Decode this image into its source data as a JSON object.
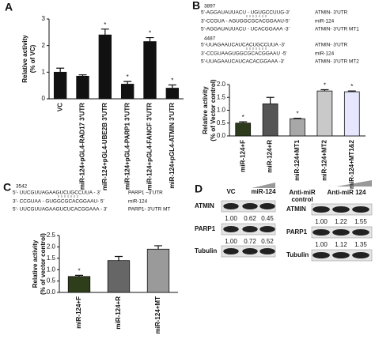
{
  "chart_data": [
    {
      "type": "bar",
      "panel_label": "A",
      "ylabel": [
        "Relative activity",
        "(% of VC)"
      ],
      "categories": [
        "VC",
        "miR-124+pGL4-RAD17 3'UTR",
        "miR-124+pGL4-UBE2B 3'UTR",
        "miR-124+pGL4-PARP1 3'UTR",
        "miR-124+pGL4-FANCF 3'UTR",
        "miR-124+pGL4-ATMIN 3'UTR"
      ],
      "values": [
        1.0,
        0.85,
        2.4,
        0.55,
        2.15,
        0.4
      ],
      "errors": [
        0.15,
        0.05,
        0.22,
        0.1,
        0.15,
        0.12
      ],
      "significance": [
        null,
        null,
        "*",
        "*",
        "*",
        "*"
      ],
      "color": "#111111",
      "ylim": [
        0,
        3
      ],
      "yticks": [
        0,
        1,
        2,
        3
      ]
    },
    {
      "type": "bar",
      "panel_label": "B",
      "sequences": [
        {
          "site": "3897",
          "lines": [
            [
              "5'-AGGAUAUUACU - UGUGCCUUG-3'",
              "ATMIN- 3'UTR"
            ],
            [
              "3'-CCGUA - AGUGGCGCACGGAAU-5'",
              "miR-124"
            ],
            [
              "5'-AGGAUAUUACU - UCACGGAAA -3'",
              "ATMIN- 3'UTR MT1"
            ]
          ]
        },
        {
          "site": "4487",
          "lines": [
            [
              "5'-UUAGAAUCAUCACUGCCUUA -3'",
              "ATMIN- 3'UTR"
            ],
            [
              "3'-CCGUAAGUGGCGCACGGAAU -5'",
              "miR-124"
            ],
            [
              "5'-UUAGAAUCAUCACACGGAAA -3'",
              "ATMIN- 3'UTR MT2"
            ]
          ]
        }
      ],
      "ylabel": [
        "Relative activity",
        "(% of Vector control)"
      ],
      "categories": [
        "miR-124+F",
        "miR-124+R",
        "miR-124+MT1",
        "miR-124+MT2",
        "miR-124+MT1&2"
      ],
      "values": [
        0.5,
        1.25,
        0.67,
        1.75,
        1.72
      ],
      "errors": [
        0.05,
        0.25,
        0.02,
        0.05,
        0.03
      ],
      "significance": [
        "*",
        null,
        "*",
        "*",
        "*"
      ],
      "colors": [
        "#2d3a1c",
        "#555555",
        "#a8a8a8",
        "#c9c9c9",
        "#e6e6ff"
      ],
      "ylim": [
        0,
        2
      ],
      "yticks": [
        {
          "value": 0,
          "label": "0.0"
        },
        {
          "value": 0.5,
          "label": "0.5"
        },
        {
          "value": 1,
          "label": "1.0"
        },
        {
          "value": 1.5,
          "label": "1.5"
        },
        {
          "value": 2,
          "label": "2.0"
        }
      ]
    },
    {
      "type": "bar",
      "panel_label": "C",
      "sequences": [
        {
          "site": "3542",
          "lines": [
            [
              "5'- UUCGUUAGAAGUCUGCCUUA - 3'",
              "PARP1 –3'UTR"
            ],
            [
              "3'- CCGUAA - GUGGCGCACGGAAU- 5'",
              "miR-124"
            ],
            [
              "5'- UUCGUUAGAAGUCUCACGGAAA - 3'",
              "PARP1- 3'UTR MT"
            ]
          ]
        }
      ],
      "ylabel": [
        "Relative activity",
        "(% of vector control)"
      ],
      "categories": [
        "miR-124+F",
        "miR-124+R",
        "miR-124+MT"
      ],
      "values": [
        0.7,
        1.4,
        1.9
      ],
      "errors": [
        0.05,
        0.18,
        0.15
      ],
      "significance": [
        "*",
        null,
        null
      ],
      "colors": [
        "#2e3d1a",
        "#666666",
        "#9a9a9a"
      ],
      "ylim": [
        0,
        2.5
      ],
      "yticks": [
        {
          "value": 0,
          "label": "0.0"
        },
        {
          "value": 0.5,
          "label": "0.5"
        },
        {
          "value": 1,
          "label": "1.0"
        },
        {
          "value": 1.5,
          "label": "1.5"
        },
        {
          "value": 2,
          "label": "2.0"
        },
        {
          "value": 2.5,
          "label": "2.5"
        }
      ]
    }
  ],
  "panel_d": {
    "panel_label": "D",
    "left": {
      "lanes": [
        "VC",
        "miR-124"
      ],
      "rows": [
        {
          "name": "ATMIN",
          "numbers": [
            "1.00",
            "0.62",
            "0.45"
          ]
        },
        {
          "name": "PARP1",
          "numbers": [
            "1.00",
            "0.72",
            "0.52"
          ]
        },
        {
          "name": "Tubulin"
        }
      ]
    },
    "right": {
      "lanes": [
        "Anti-miR",
        "control",
        "Anti-miR 124"
      ],
      "rows": [
        {
          "name": "ATMIN",
          "numbers": [
            "1.00",
            "1.22",
            "1.55"
          ]
        },
        {
          "name": "PARP1",
          "numbers": [
            "1.00",
            "1.12",
            "1.35"
          ]
        },
        {
          "name": "Tubulin"
        }
      ]
    }
  }
}
